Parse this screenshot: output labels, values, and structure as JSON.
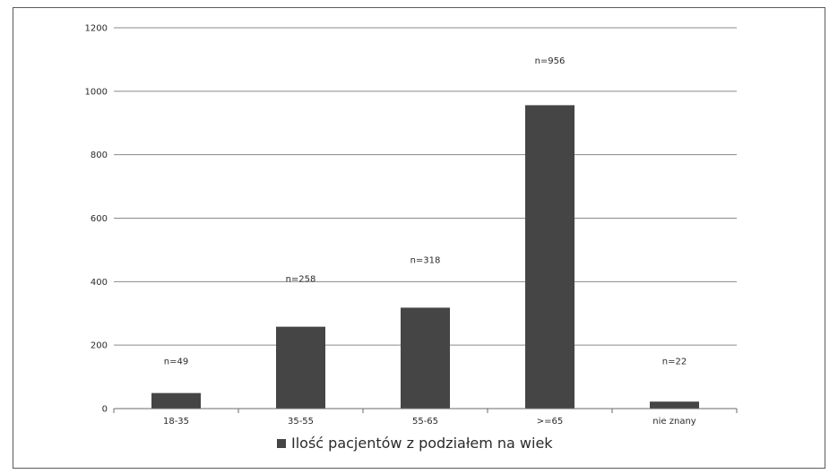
{
  "chart_data": {
    "type": "bar",
    "categories": [
      "18-35",
      "35-55",
      "55-65",
      ">=65",
      "nie znany"
    ],
    "series": [
      {
        "name": "Ilość pacjentów z podziałem na wiek",
        "values": [
          49,
          258,
          318,
          956,
          22
        ],
        "data_labels": [
          "n=49",
          "n=258",
          "n=318",
          "n=956",
          "n=22"
        ]
      }
    ],
    "ylim": [
      0,
      1200
    ],
    "yticks": [
      0,
      200,
      400,
      600,
      800,
      1000,
      1200
    ],
    "grid": true,
    "legend_position": "bottom",
    "colors": {
      "bar": "#454545",
      "grid": "#8a8a8a",
      "axis": "#6a6a6a",
      "text": "#2a2a2a"
    }
  }
}
